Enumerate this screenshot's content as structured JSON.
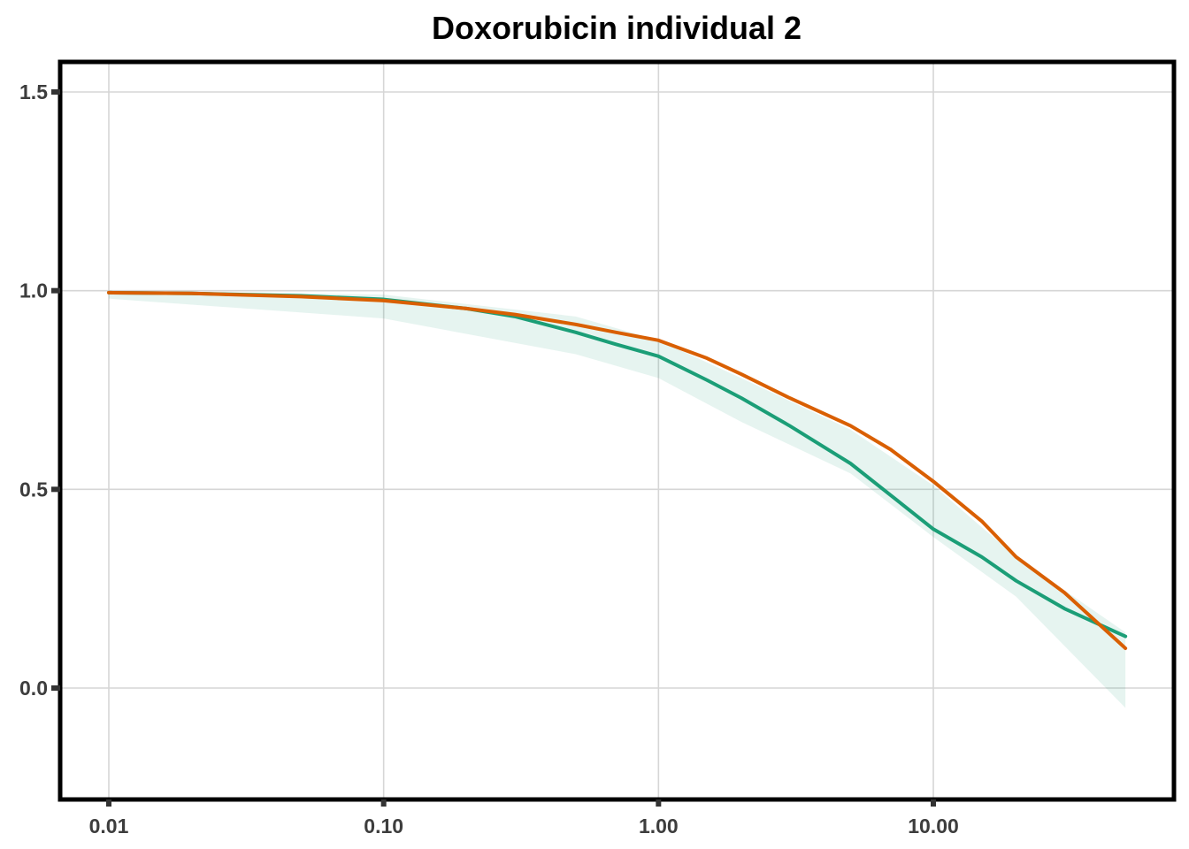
{
  "chart_data": {
    "type": "line",
    "title": "Doxorubicin individual 2",
    "xlabel": "",
    "ylabel": "",
    "x_scale": "log10",
    "xlim": [
      0.01,
      50
    ],
    "ylim": [
      -0.25,
      1.6
    ],
    "grid": true,
    "legend": "none",
    "x_ticks": [
      0.01,
      0.1,
      1,
      10
    ],
    "x_tick_labels": [
      "0.01",
      "0.10",
      "1.00",
      "10.00"
    ],
    "y_ticks": [
      0.0,
      0.5,
      1.0,
      1.5
    ],
    "y_tick_labels": [
      "0.0",
      "0.5",
      "1.0",
      "1.5"
    ],
    "ribbon": {
      "color": "#1b9e77",
      "opacity": 0.11,
      "x": [
        0.01,
        0.1,
        0.5,
        1.0,
        2.0,
        5.0,
        10.0,
        20.0,
        50.0
      ],
      "lower": [
        0.98,
        0.93,
        0.84,
        0.78,
        0.67,
        0.54,
        0.38,
        0.23,
        -0.05
      ],
      "upper": [
        1.0,
        0.99,
        0.935,
        0.875,
        0.78,
        0.65,
        0.51,
        0.33,
        0.14
      ]
    },
    "series": [
      {
        "color": "#1b9e77",
        "x": [
          0.01,
          0.02,
          0.05,
          0.1,
          0.2,
          0.3,
          0.5,
          0.7,
          1.0,
          1.5,
          2.0,
          3.0,
          5.0,
          7.0,
          10.0,
          15.0,
          20.0,
          30.0,
          50.0
        ],
        "values": [
          0.995,
          0.993,
          0.987,
          0.978,
          0.955,
          0.935,
          0.895,
          0.865,
          0.835,
          0.775,
          0.73,
          0.66,
          0.565,
          0.485,
          0.4,
          0.33,
          0.27,
          0.2,
          0.13
        ]
      },
      {
        "color": "#d95f02",
        "x": [
          0.01,
          0.02,
          0.05,
          0.1,
          0.2,
          0.3,
          0.5,
          0.7,
          1.0,
          1.5,
          2.0,
          3.0,
          5.0,
          7.0,
          10.0,
          15.0,
          20.0,
          30.0,
          50.0
        ],
        "values": [
          0.995,
          0.993,
          0.985,
          0.975,
          0.955,
          0.94,
          0.915,
          0.895,
          0.875,
          0.83,
          0.79,
          0.73,
          0.66,
          0.6,
          0.52,
          0.42,
          0.33,
          0.24,
          0.1
        ]
      }
    ]
  }
}
